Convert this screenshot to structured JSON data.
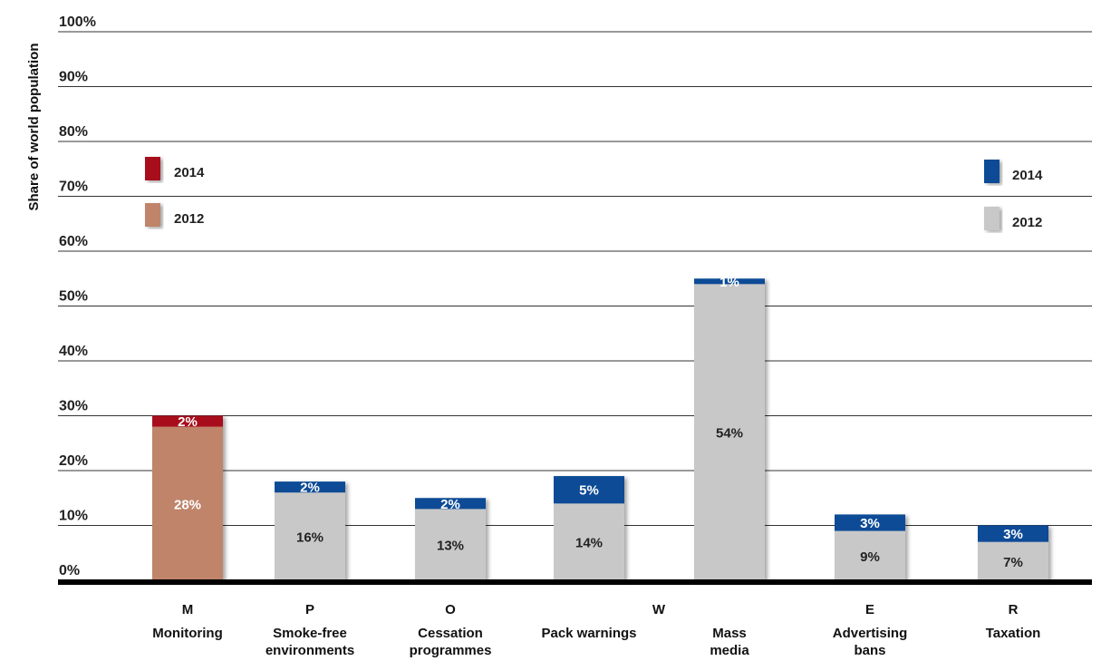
{
  "chart_data": {
    "type": "bar",
    "stacked": true,
    "ylabel": "Share of world population",
    "ylim": [
      0,
      100
    ],
    "yticks": [
      "0%",
      "10%",
      "20%",
      "30%",
      "40%",
      "50%",
      "60%",
      "70%",
      "80%",
      "90%",
      "100%"
    ],
    "grid": true,
    "categories": [
      {
        "letter": "M",
        "name": [
          "Monitoring"
        ]
      },
      {
        "letter": "P",
        "name": [
          "Smoke-free",
          "environments"
        ]
      },
      {
        "letter": "O",
        "name": [
          "Cessation",
          "programmes"
        ]
      },
      {
        "letter": "W",
        "name": [
          "Pack warnings"
        ]
      },
      {
        "letter": "",
        "name": [
          "Mass",
          "media"
        ]
      },
      {
        "letter": "E",
        "name": [
          "Advertising",
          "bans"
        ]
      },
      {
        "letter": "R",
        "name": [
          "Taxation"
        ]
      }
    ],
    "series": [
      {
        "name": "2012",
        "values": [
          28,
          16,
          13,
          14,
          54,
          9,
          7
        ],
        "labels": [
          "28%",
          "16%",
          "13%",
          "14%",
          "54%",
          "9%",
          "7%"
        ]
      },
      {
        "name": "2014",
        "values": [
          2,
          2,
          2,
          5,
          1,
          3,
          3
        ],
        "labels": [
          "2%",
          "2%",
          "2%",
          "5%",
          "1%",
          "3%",
          "3%"
        ]
      }
    ],
    "colors": {
      "monitoring_2012": "#bf846b",
      "monitoring_2014": "#a8111d",
      "other_2012": "#c8c8c8",
      "other_2014": "#0a4c96",
      "gridline": "#333333",
      "axis": "#000000"
    },
    "legends": [
      {
        "placement": "left",
        "entries": [
          {
            "label": "2014",
            "color": "#a8111d"
          },
          {
            "label": "2012",
            "color": "#bf846b"
          }
        ]
      },
      {
        "placement": "right",
        "entries": [
          {
            "label": "2014",
            "color": "#0a4c96"
          },
          {
            "label": "2012",
            "color": "#c8c8c8"
          }
        ]
      }
    ]
  }
}
